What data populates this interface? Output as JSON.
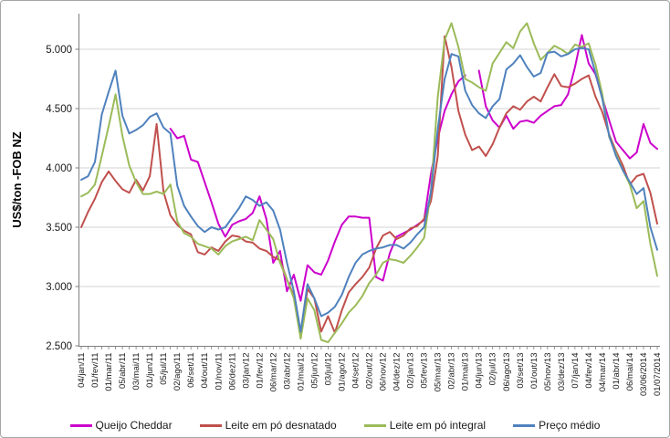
{
  "chart_data": {
    "type": "line",
    "title": "",
    "xlabel": "",
    "ylabel": "US$/ton -FOB NZ",
    "ylim": [
      2500,
      5300
    ],
    "grid": true,
    "legend_position": "bottom",
    "ytick_values": [
      2500,
      3000,
      3500,
      4000,
      4500,
      5000
    ],
    "ytick_labels": [
      "2.500",
      "3.000",
      "3.500",
      "4.000",
      "4.500",
      "5.000"
    ],
    "x_labels": [
      "04/jan/11",
      "01/fev/11",
      "01/mar/11",
      "05/abr/11",
      "03/mai/11",
      "01/jun/11",
      "05/jul/11",
      "02/ago/11",
      "06/set/11",
      "04/out/11",
      "01/nov/11",
      "06/dez/11",
      "03/jan/12",
      "01/fev/12",
      "06/mar/12",
      "03/abr/12",
      "01/mai/12",
      "05/jun/12",
      "03/jul/12",
      "01/ago/12",
      "04/set/12",
      "02/out/12",
      "06/nov/12",
      "04/dez/12",
      "02/jan/13",
      "05/fev/13",
      "05/mar/13",
      "02/abr/13",
      "01/mai/13",
      "04/jun/13",
      "02/jul/13",
      "06/ago/13",
      "03/set/13",
      "01/out/13",
      "05/nov/13",
      "03/dez/13",
      "07/jan/14",
      "04/fev/14",
      "04/mar/14",
      "01/abr/14",
      "06/mai/14",
      "03/06/2014",
      "01/07/2014"
    ],
    "points_per_label": 2,
    "series": [
      {
        "id": "queijo-cheddar",
        "name": "Queijo Cheddar",
        "color": "#CC00CC",
        "values": [
          null,
          null,
          null,
          null,
          null,
          null,
          null,
          null,
          null,
          null,
          null,
          null,
          null,
          4330,
          4250,
          4270,
          4070,
          4050,
          3880,
          3710,
          3530,
          3420,
          3520,
          3550,
          3570,
          3620,
          3760,
          3570,
          3200,
          3300,
          2960,
          3100,
          2880,
          3180,
          3120,
          3100,
          3220,
          3380,
          3520,
          3590,
          3590,
          3580,
          3580,
          3080,
          3050,
          3280,
          3420,
          3450,
          3480,
          3520,
          3560,
          3950,
          4250,
          4480,
          4620,
          4730,
          4780,
          null,
          4820,
          4520,
          4400,
          4340,
          4440,
          4330,
          4390,
          4400,
          4380,
          4440,
          4480,
          4520,
          4530,
          4620,
          4850,
          5120,
          4880,
          4790,
          4590,
          4400,
          4220,
          4150,
          4080,
          4130,
          4370,
          4210,
          4160
        ]
      },
      {
        "id": "leite-po-desnatado",
        "name": "Leite em pó desnatado",
        "color": "#C0504D",
        "values": [
          3500,
          3630,
          3740,
          3880,
          3970,
          3890,
          3820,
          3790,
          3900,
          3810,
          3930,
          4370,
          3800,
          3600,
          3520,
          3470,
          3440,
          3290,
          3270,
          3330,
          3300,
          3380,
          3430,
          3420,
          3380,
          3370,
          3320,
          3300,
          3250,
          3220,
          3060,
          2920,
          2580,
          2980,
          2900,
          2620,
          2750,
          2610,
          2800,
          2950,
          3020,
          3080,
          3160,
          3320,
          3430,
          3460,
          3400,
          3430,
          3490,
          3510,
          3570,
          3720,
          4100,
          5110,
          4850,
          4480,
          4280,
          4150,
          4180,
          4100,
          4200,
          4340,
          4460,
          4520,
          4490,
          4560,
          4600,
          4560,
          4680,
          4790,
          4690,
          4680,
          4710,
          4750,
          4780,
          4600,
          4470,
          4280,
          4140,
          4020,
          3860,
          3930,
          3950,
          3790,
          3530
        ]
      },
      {
        "id": "leite-po-integral",
        "name": "Leite em pó integral",
        "color": "#9BBB59",
        "values": [
          3760,
          3790,
          3860,
          4100,
          4350,
          4620,
          4270,
          4020,
          3880,
          3780,
          3780,
          3800,
          3780,
          3860,
          3550,
          3450,
          3420,
          3360,
          3340,
          3320,
          3270,
          3340,
          3380,
          3400,
          3420,
          3390,
          3560,
          3480,
          3400,
          3200,
          3060,
          2900,
          2560,
          2900,
          2800,
          2550,
          2530,
          2610,
          2690,
          2780,
          2840,
          2920,
          3030,
          3100,
          3200,
          3230,
          3220,
          3200,
          3260,
          3330,
          3410,
          3800,
          4600,
          5080,
          5220,
          5020,
          4750,
          4720,
          4680,
          4650,
          4880,
          4970,
          5060,
          5010,
          5150,
          5220,
          5050,
          4910,
          4970,
          5030,
          5000,
          4960,
          5040,
          5020,
          5050,
          4870,
          4620,
          4260,
          4120,
          3980,
          3860,
          3660,
          3720,
          3360,
          3090
        ]
      },
      {
        "id": "preco-medio",
        "name": "Preço médio",
        "color": "#4F81BD",
        "values": [
          3900,
          3930,
          4050,
          4450,
          4640,
          4820,
          4440,
          4290,
          4320,
          4360,
          4430,
          4460,
          4340,
          4290,
          3850,
          3680,
          3590,
          3510,
          3460,
          3500,
          3480,
          3500,
          3580,
          3660,
          3760,
          3730,
          3680,
          3710,
          3640,
          3480,
          3200,
          2960,
          2620,
          3020,
          2900,
          2750,
          2780,
          2830,
          2930,
          3080,
          3200,
          3270,
          3300,
          3320,
          3330,
          3350,
          3350,
          3320,
          3370,
          3440,
          3500,
          3800,
          4330,
          4750,
          4960,
          4940,
          4650,
          4530,
          4460,
          4420,
          4520,
          4580,
          4830,
          4880,
          4950,
          4850,
          4770,
          4800,
          4970,
          4980,
          4940,
          4960,
          5000,
          5010,
          5000,
          4800,
          4580,
          4270,
          4100,
          3980,
          3880,
          3780,
          3830,
          3500,
          3310
        ]
      }
    ]
  }
}
